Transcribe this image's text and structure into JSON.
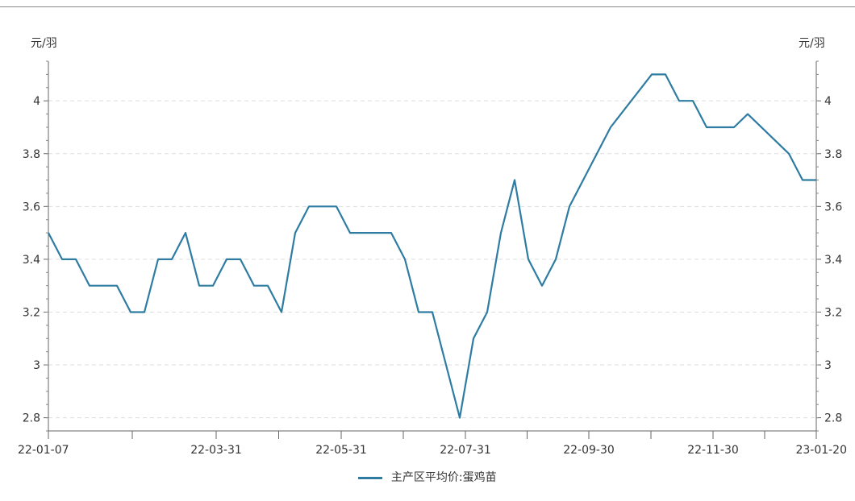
{
  "chart_data": {
    "type": "line",
    "left_unit": "元/羽",
    "right_unit": "元/羽",
    "ylim": [
      2.75,
      4.15
    ],
    "y_ticks": [
      "2.8",
      "3",
      "3.2",
      "3.4",
      "3.6",
      "3.8",
      "4"
    ],
    "x_tick_labels": [
      "22-01-07",
      "22-03-31",
      "22-05-31",
      "22-07-31",
      "22-09-30",
      "22-11-30",
      "23-01-20"
    ],
    "grid": "horizontal dashed",
    "legend_position": "bottom",
    "series": [
      {
        "name": "主产区平均价:蛋鸡苗",
        "color": "#2e7ca2",
        "points": [
          [
            "2022-01-07",
            3.5
          ],
          [
            "2022-01-14",
            3.4
          ],
          [
            "2022-01-21",
            3.4
          ],
          [
            "2022-01-28",
            3.3
          ],
          [
            "2022-02-04",
            3.3
          ],
          [
            "2022-02-11",
            3.3
          ],
          [
            "2022-02-18",
            3.2
          ],
          [
            "2022-02-25",
            3.2
          ],
          [
            "2022-03-04",
            3.4
          ],
          [
            "2022-03-11",
            3.4
          ],
          [
            "2022-03-18",
            3.5
          ],
          [
            "2022-03-25",
            3.3
          ],
          [
            "2022-04-01",
            3.3
          ],
          [
            "2022-04-08",
            3.4
          ],
          [
            "2022-04-15",
            3.4
          ],
          [
            "2022-04-22",
            3.3
          ],
          [
            "2022-04-29",
            3.3
          ],
          [
            "2022-05-06",
            3.2
          ],
          [
            "2022-05-13",
            3.5
          ],
          [
            "2022-05-20",
            3.6
          ],
          [
            "2022-05-27",
            3.6
          ],
          [
            "2022-06-03",
            3.6
          ],
          [
            "2022-06-10",
            3.5
          ],
          [
            "2022-06-17",
            3.5
          ],
          [
            "2022-06-24",
            3.5
          ],
          [
            "2022-07-01",
            3.5
          ],
          [
            "2022-07-08",
            3.4
          ],
          [
            "2022-07-15",
            3.2
          ],
          [
            "2022-07-22",
            3.2
          ],
          [
            "2022-08-05",
            2.8
          ],
          [
            "2022-08-12",
            3.1
          ],
          [
            "2022-08-19",
            3.2
          ],
          [
            "2022-08-26",
            3.5
          ],
          [
            "2022-09-02",
            3.7
          ],
          [
            "2022-09-09",
            3.4
          ],
          [
            "2022-09-16",
            3.3
          ],
          [
            "2022-09-23",
            3.4
          ],
          [
            "2022-09-30",
            3.6
          ],
          [
            "2022-10-21",
            3.9
          ],
          [
            "2022-11-11",
            4.1
          ],
          [
            "2022-11-18",
            4.1
          ],
          [
            "2022-11-25",
            4.0
          ],
          [
            "2022-12-02",
            4.0
          ],
          [
            "2022-12-09",
            3.9
          ],
          [
            "2022-12-16",
            3.9
          ],
          [
            "2022-12-23",
            3.9
          ],
          [
            "2022-12-30",
            3.95
          ],
          [
            "2023-01-20",
            3.8
          ],
          [
            "2023-01-27",
            3.7
          ],
          [
            "2023-02-03",
            3.7
          ]
        ]
      }
    ]
  }
}
